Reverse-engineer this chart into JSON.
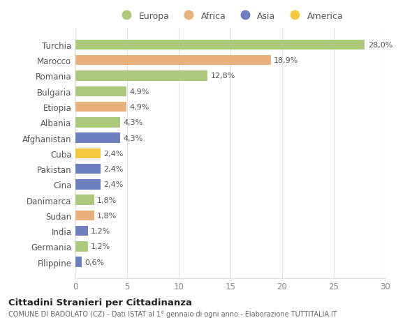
{
  "countries": [
    "Turchia",
    "Marocco",
    "Romania",
    "Bulgaria",
    "Etiopia",
    "Albania",
    "Afghanistan",
    "Cuba",
    "Pakistan",
    "Cina",
    "Danimarca",
    "Sudan",
    "India",
    "Germania",
    "Filippine"
  ],
  "values": [
    28.0,
    18.9,
    12.8,
    4.9,
    4.9,
    4.3,
    4.3,
    2.4,
    2.4,
    2.4,
    1.8,
    1.8,
    1.2,
    1.2,
    0.6
  ],
  "labels": [
    "28,0%",
    "18,9%",
    "12,8%",
    "4,9%",
    "4,9%",
    "4,3%",
    "4,3%",
    "2,4%",
    "2,4%",
    "2,4%",
    "1,8%",
    "1,8%",
    "1,2%",
    "1,2%",
    "0,6%"
  ],
  "colors": [
    "#adc97e",
    "#e8b07a",
    "#adc97e",
    "#adc97e",
    "#e8b07a",
    "#adc97e",
    "#6e7fc0",
    "#f5c842",
    "#6e7fc0",
    "#6e7fc0",
    "#adc97e",
    "#e8b07a",
    "#6e7fc0",
    "#adc97e",
    "#6e7fc0"
  ],
  "legend_labels": [
    "Europa",
    "Africa",
    "Asia",
    "America"
  ],
  "legend_colors": [
    "#adc97e",
    "#e8b07a",
    "#6e7fc0",
    "#f5c842"
  ],
  "title": "Cittadini Stranieri per Cittadinanza",
  "subtitle": "COMUNE DI BADOLATO (CZ) - Dati ISTAT al 1° gennaio di ogni anno - Elaborazione TUTTITALIA.IT",
  "xlim": [
    0,
    30
  ],
  "xticks": [
    0,
    5,
    10,
    15,
    20,
    25,
    30
  ],
  "background_color": "#ffffff",
  "grid_color": "#e0e0e0"
}
